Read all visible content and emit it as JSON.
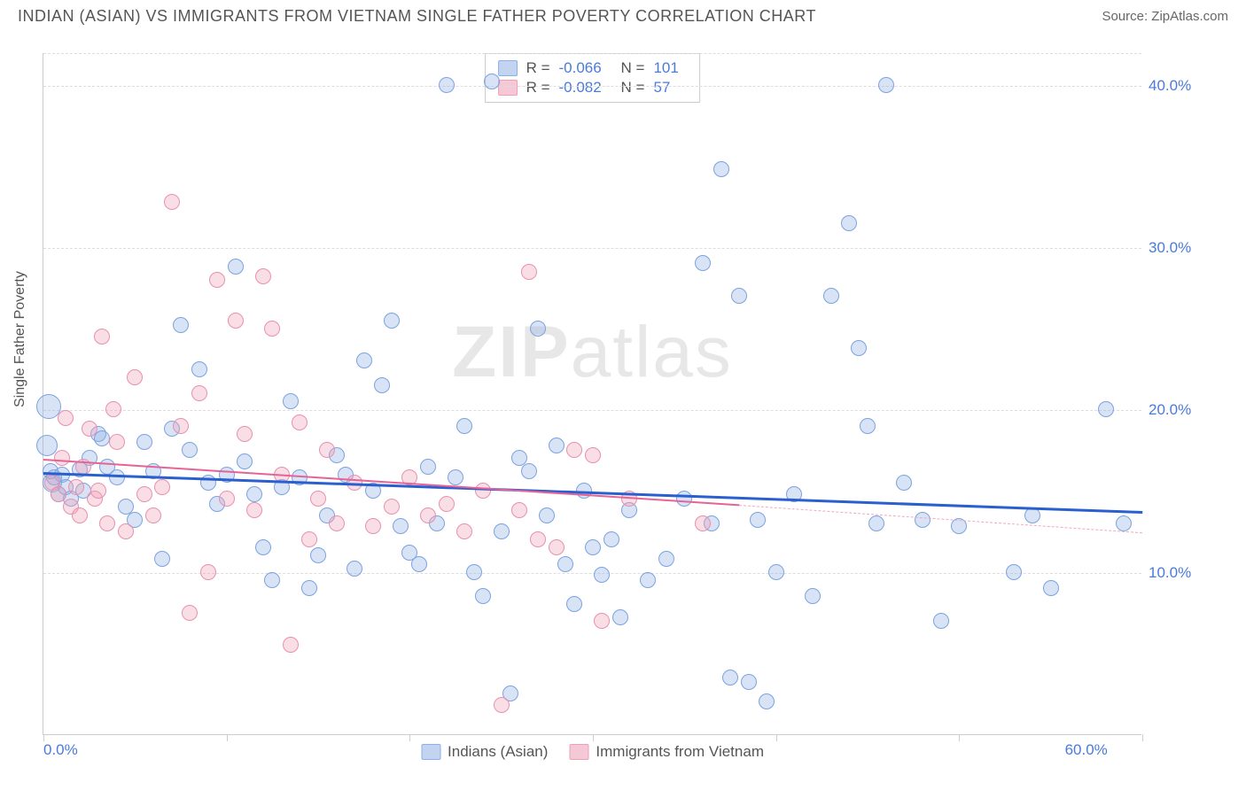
{
  "title": "INDIAN (ASIAN) VS IMMIGRANTS FROM VIETNAM SINGLE FATHER POVERTY CORRELATION CHART",
  "source": "Source: ZipAtlas.com",
  "y_axis_label": "Single Father Poverty",
  "watermark": {
    "bold": "ZIP",
    "light": "atlas"
  },
  "chart": {
    "type": "scatter",
    "xlim": [
      0,
      60
    ],
    "ylim": [
      0,
      42
    ],
    "x_ticks": [
      0,
      10,
      20,
      30,
      40,
      50,
      60
    ],
    "x_tick_labels_shown": {
      "left": "0.0%",
      "right": "60.0%"
    },
    "y_ticks": [
      10,
      20,
      30,
      40
    ],
    "y_tick_labels": [
      "10.0%",
      "20.0%",
      "30.0%",
      "40.0%"
    ],
    "grid_color": "#dddddd",
    "background_color": "#ffffff",
    "axis_color": "#cccccc",
    "tick_label_color": "#4a7bd8",
    "point_radius_default": 9
  },
  "series": [
    {
      "name": "Indians (Asian)",
      "color_fill": "rgba(142,176,230,0.35)",
      "color_stroke": "#7ba3e0",
      "swatch_bg": "#c3d4f0",
      "swatch_border": "#8eb0e6",
      "R": "-0.066",
      "N": "101",
      "trend": {
        "x1": 0,
        "y1": 16.2,
        "x2": 60,
        "y2": 13.8,
        "color": "#2a5fcf",
        "width": 2.5
      },
      "points": [
        {
          "x": 0.3,
          "y": 20.2,
          "r": 14
        },
        {
          "x": 0.2,
          "y": 17.8,
          "r": 12
        },
        {
          "x": 0.5,
          "y": 15.5,
          "r": 11
        },
        {
          "x": 0.4,
          "y": 16.2,
          "r": 9
        },
        {
          "x": 0.8,
          "y": 14.8,
          "r": 9
        },
        {
          "x": 0.6,
          "y": 15.8,
          "r": 9
        },
        {
          "x": 1.0,
          "y": 16.0,
          "r": 9
        },
        {
          "x": 1.2,
          "y": 15.2,
          "r": 9
        },
        {
          "x": 1.5,
          "y": 14.5,
          "r": 9
        },
        {
          "x": 2.0,
          "y": 16.3,
          "r": 9
        },
        {
          "x": 2.2,
          "y": 15.0,
          "r": 9
        },
        {
          "x": 2.5,
          "y": 17.0,
          "r": 9
        },
        {
          "x": 3.0,
          "y": 18.5,
          "r": 9
        },
        {
          "x": 3.2,
          "y": 18.2,
          "r": 9
        },
        {
          "x": 3.5,
          "y": 16.5,
          "r": 9
        },
        {
          "x": 4.0,
          "y": 15.8,
          "r": 9
        },
        {
          "x": 4.5,
          "y": 14.0,
          "r": 9
        },
        {
          "x": 5.0,
          "y": 13.2,
          "r": 9
        },
        {
          "x": 5.5,
          "y": 18.0,
          "r": 9
        },
        {
          "x": 6.0,
          "y": 16.2,
          "r": 9
        },
        {
          "x": 6.5,
          "y": 10.8,
          "r": 9
        },
        {
          "x": 7.0,
          "y": 18.8,
          "r": 9
        },
        {
          "x": 7.5,
          "y": 25.2,
          "r": 9
        },
        {
          "x": 8.0,
          "y": 17.5,
          "r": 9
        },
        {
          "x": 8.5,
          "y": 22.5,
          "r": 9
        },
        {
          "x": 9.0,
          "y": 15.5,
          "r": 9
        },
        {
          "x": 9.5,
          "y": 14.2,
          "r": 9
        },
        {
          "x": 10.0,
          "y": 16.0,
          "r": 9
        },
        {
          "x": 10.5,
          "y": 28.8,
          "r": 9
        },
        {
          "x": 11.0,
          "y": 16.8,
          "r": 9
        },
        {
          "x": 11.5,
          "y": 14.8,
          "r": 9
        },
        {
          "x": 12.0,
          "y": 11.5,
          "r": 9
        },
        {
          "x": 12.5,
          "y": 9.5,
          "r": 9
        },
        {
          "x": 13.0,
          "y": 15.2,
          "r": 9
        },
        {
          "x": 13.5,
          "y": 20.5,
          "r": 9
        },
        {
          "x": 14.0,
          "y": 15.8,
          "r": 9
        },
        {
          "x": 14.5,
          "y": 9.0,
          "r": 9
        },
        {
          "x": 15.0,
          "y": 11.0,
          "r": 9
        },
        {
          "x": 15.5,
          "y": 13.5,
          "r": 9
        },
        {
          "x": 16.0,
          "y": 17.2,
          "r": 9
        },
        {
          "x": 16.5,
          "y": 16.0,
          "r": 9
        },
        {
          "x": 17.0,
          "y": 10.2,
          "r": 9
        },
        {
          "x": 17.5,
          "y": 23.0,
          "r": 9
        },
        {
          "x": 18.0,
          "y": 15.0,
          "r": 9
        },
        {
          "x": 18.5,
          "y": 21.5,
          "r": 9
        },
        {
          "x": 19.0,
          "y": 25.5,
          "r": 9
        },
        {
          "x": 19.5,
          "y": 12.8,
          "r": 9
        },
        {
          "x": 20.0,
          "y": 11.2,
          "r": 9
        },
        {
          "x": 20.5,
          "y": 10.5,
          "r": 9
        },
        {
          "x": 21.0,
          "y": 16.5,
          "r": 9
        },
        {
          "x": 21.5,
          "y": 13.0,
          "r": 9
        },
        {
          "x": 22.0,
          "y": 40.0,
          "r": 9
        },
        {
          "x": 22.5,
          "y": 15.8,
          "r": 9
        },
        {
          "x": 23.0,
          "y": 19.0,
          "r": 9
        },
        {
          "x": 23.5,
          "y": 10.0,
          "r": 9
        },
        {
          "x": 24.0,
          "y": 8.5,
          "r": 9
        },
        {
          "x": 24.5,
          "y": 40.2,
          "r": 9
        },
        {
          "x": 25.0,
          "y": 12.5,
          "r": 9
        },
        {
          "x": 25.5,
          "y": 2.5,
          "r": 9
        },
        {
          "x": 26.0,
          "y": 17.0,
          "r": 9
        },
        {
          "x": 26.5,
          "y": 16.2,
          "r": 9
        },
        {
          "x": 27.0,
          "y": 25.0,
          "r": 9
        },
        {
          "x": 27.5,
          "y": 13.5,
          "r": 9
        },
        {
          "x": 28.0,
          "y": 17.8,
          "r": 9
        },
        {
          "x": 28.5,
          "y": 10.5,
          "r": 9
        },
        {
          "x": 29.0,
          "y": 8.0,
          "r": 9
        },
        {
          "x": 29.5,
          "y": 15.0,
          "r": 9
        },
        {
          "x": 30.0,
          "y": 11.5,
          "r": 9
        },
        {
          "x": 30.5,
          "y": 9.8,
          "r": 9
        },
        {
          "x": 31.0,
          "y": 12.0,
          "r": 9
        },
        {
          "x": 31.5,
          "y": 7.2,
          "r": 9
        },
        {
          "x": 32.0,
          "y": 13.8,
          "r": 9
        },
        {
          "x": 33.0,
          "y": 9.5,
          "r": 9
        },
        {
          "x": 34.0,
          "y": 10.8,
          "r": 9
        },
        {
          "x": 35.0,
          "y": 14.5,
          "r": 9
        },
        {
          "x": 36.0,
          "y": 29.0,
          "r": 9
        },
        {
          "x": 36.5,
          "y": 13.0,
          "r": 9
        },
        {
          "x": 37.0,
          "y": 34.8,
          "r": 9
        },
        {
          "x": 37.5,
          "y": 3.5,
          "r": 9
        },
        {
          "x": 38.0,
          "y": 27.0,
          "r": 9
        },
        {
          "x": 38.5,
          "y": 3.2,
          "r": 9
        },
        {
          "x": 39.0,
          "y": 13.2,
          "r": 9
        },
        {
          "x": 39.5,
          "y": 2.0,
          "r": 9
        },
        {
          "x": 40.0,
          "y": 10.0,
          "r": 9
        },
        {
          "x": 41.0,
          "y": 14.8,
          "r": 9
        },
        {
          "x": 42.0,
          "y": 8.5,
          "r": 9
        },
        {
          "x": 43.0,
          "y": 27.0,
          "r": 9
        },
        {
          "x": 44.0,
          "y": 31.5,
          "r": 9
        },
        {
          "x": 44.5,
          "y": 23.8,
          "r": 9
        },
        {
          "x": 45.0,
          "y": 19.0,
          "r": 9
        },
        {
          "x": 45.5,
          "y": 13.0,
          "r": 9
        },
        {
          "x": 46.0,
          "y": 40.0,
          "r": 9
        },
        {
          "x": 47.0,
          "y": 15.5,
          "r": 9
        },
        {
          "x": 48.0,
          "y": 13.2,
          "r": 9
        },
        {
          "x": 49.0,
          "y": 7.0,
          "r": 9
        },
        {
          "x": 50.0,
          "y": 12.8,
          "r": 9
        },
        {
          "x": 53.0,
          "y": 10.0,
          "r": 9
        },
        {
          "x": 54.0,
          "y": 13.5,
          "r": 9
        },
        {
          "x": 55.0,
          "y": 9.0,
          "r": 9
        },
        {
          "x": 58.0,
          "y": 20.0,
          "r": 9
        },
        {
          "x": 59.0,
          "y": 13.0,
          "r": 9
        }
      ]
    },
    {
      "name": "Immigrants from Vietnam",
      "color_fill": "rgba(240,160,180,0.35)",
      "color_stroke": "#e890b0",
      "swatch_bg": "#f5c8d6",
      "swatch_border": "#eda0ba",
      "R": "-0.082",
      "N": "57",
      "trend": {
        "x1": 0,
        "y1": 17.0,
        "x2": 38,
        "y2": 14.2,
        "color": "#e66395",
        "width": 2
      },
      "trend_ext": {
        "x1": 38,
        "y1": 14.2,
        "x2": 60,
        "y2": 12.5,
        "color": "#f0a8c0",
        "width": 1.5
      },
      "points": [
        {
          "x": 0.5,
          "y": 15.5,
          "r": 9
        },
        {
          "x": 0.8,
          "y": 14.8,
          "r": 9
        },
        {
          "x": 1.0,
          "y": 17.0,
          "r": 9
        },
        {
          "x": 1.2,
          "y": 19.5,
          "r": 9
        },
        {
          "x": 1.5,
          "y": 14.0,
          "r": 9
        },
        {
          "x": 1.8,
          "y": 15.2,
          "r": 9
        },
        {
          "x": 2.0,
          "y": 13.5,
          "r": 9
        },
        {
          "x": 2.2,
          "y": 16.5,
          "r": 9
        },
        {
          "x": 2.5,
          "y": 18.8,
          "r": 9
        },
        {
          "x": 2.8,
          "y": 14.5,
          "r": 9
        },
        {
          "x": 3.0,
          "y": 15.0,
          "r": 9
        },
        {
          "x": 3.2,
          "y": 24.5,
          "r": 9
        },
        {
          "x": 3.5,
          "y": 13.0,
          "r": 9
        },
        {
          "x": 3.8,
          "y": 20.0,
          "r": 9
        },
        {
          "x": 4.0,
          "y": 18.0,
          "r": 9
        },
        {
          "x": 4.5,
          "y": 12.5,
          "r": 9
        },
        {
          "x": 5.0,
          "y": 22.0,
          "r": 9
        },
        {
          "x": 5.5,
          "y": 14.8,
          "r": 9
        },
        {
          "x": 6.0,
          "y": 13.5,
          "r": 9
        },
        {
          "x": 6.5,
          "y": 15.2,
          "r": 9
        },
        {
          "x": 7.0,
          "y": 32.8,
          "r": 9
        },
        {
          "x": 7.5,
          "y": 19.0,
          "r": 9
        },
        {
          "x": 8.0,
          "y": 7.5,
          "r": 9
        },
        {
          "x": 8.5,
          "y": 21.0,
          "r": 9
        },
        {
          "x": 9.0,
          "y": 10.0,
          "r": 9
        },
        {
          "x": 9.5,
          "y": 28.0,
          "r": 9
        },
        {
          "x": 10.0,
          "y": 14.5,
          "r": 9
        },
        {
          "x": 10.5,
          "y": 25.5,
          "r": 9
        },
        {
          "x": 11.0,
          "y": 18.5,
          "r": 9
        },
        {
          "x": 11.5,
          "y": 13.8,
          "r": 9
        },
        {
          "x": 12.0,
          "y": 28.2,
          "r": 9
        },
        {
          "x": 12.5,
          "y": 25.0,
          "r": 9
        },
        {
          "x": 13.0,
          "y": 16.0,
          "r": 9
        },
        {
          "x": 13.5,
          "y": 5.5,
          "r": 9
        },
        {
          "x": 14.0,
          "y": 19.2,
          "r": 9
        },
        {
          "x": 14.5,
          "y": 12.0,
          "r": 9
        },
        {
          "x": 15.0,
          "y": 14.5,
          "r": 9
        },
        {
          "x": 15.5,
          "y": 17.5,
          "r": 9
        },
        {
          "x": 16.0,
          "y": 13.0,
          "r": 9
        },
        {
          "x": 17.0,
          "y": 15.5,
          "r": 9
        },
        {
          "x": 18.0,
          "y": 12.8,
          "r": 9
        },
        {
          "x": 19.0,
          "y": 14.0,
          "r": 9
        },
        {
          "x": 20.0,
          "y": 15.8,
          "r": 9
        },
        {
          "x": 21.0,
          "y": 13.5,
          "r": 9
        },
        {
          "x": 22.0,
          "y": 14.2,
          "r": 9
        },
        {
          "x": 23.0,
          "y": 12.5,
          "r": 9
        },
        {
          "x": 24.0,
          "y": 15.0,
          "r": 9
        },
        {
          "x": 25.0,
          "y": 1.8,
          "r": 9
        },
        {
          "x": 26.0,
          "y": 13.8,
          "r": 9
        },
        {
          "x": 26.5,
          "y": 28.5,
          "r": 9
        },
        {
          "x": 27.0,
          "y": 12.0,
          "r": 9
        },
        {
          "x": 28.0,
          "y": 11.5,
          "r": 9
        },
        {
          "x": 29.0,
          "y": 17.5,
          "r": 9
        },
        {
          "x": 30.0,
          "y": 17.2,
          "r": 9
        },
        {
          "x": 30.5,
          "y": 7.0,
          "r": 9
        },
        {
          "x": 32.0,
          "y": 14.5,
          "r": 9
        },
        {
          "x": 36.0,
          "y": 13.0,
          "r": 9
        }
      ]
    }
  ],
  "legend_bottom": [
    "Indians (Asian)",
    "Immigrants from Vietnam"
  ]
}
